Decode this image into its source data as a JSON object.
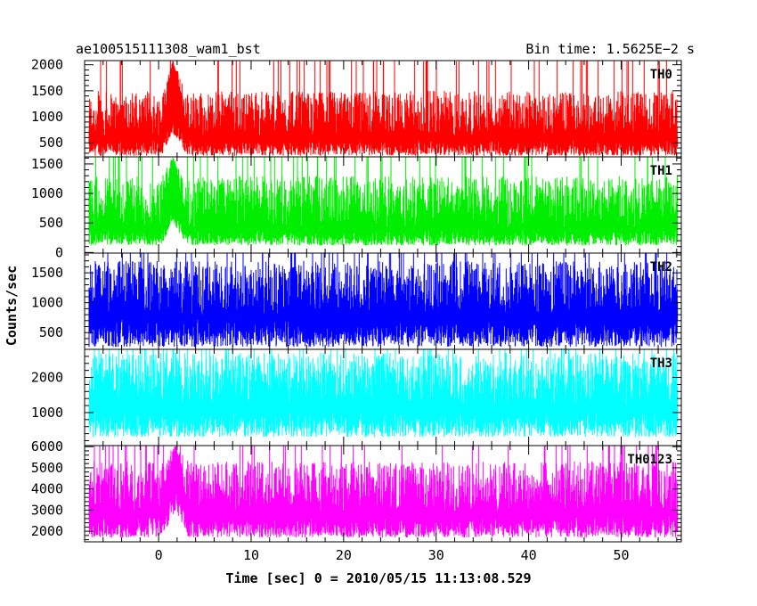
{
  "chart_data": {
    "type": "line",
    "title_left": "ae100515111308_wam1_bst",
    "title_right": "Bin time: 1.5625E−2 s",
    "xlabel": "Time [sec] 0 = 2010/05/15 11:13:08.529",
    "ylabel": "Counts/sec",
    "xlim": [
      -8,
      56.5
    ],
    "xticks": [
      0,
      10,
      20,
      30,
      40,
      50
    ],
    "x_minor_step": 2,
    "x_data_range": [
      -7.5,
      56
    ],
    "bin_time": 0.015625,
    "grid": false,
    "panels": [
      {
        "name": "TH0",
        "color": "#ff0000",
        "ylim": [
          230,
          2080
        ],
        "yticks": [
          500,
          1000,
          1500,
          2000
        ],
        "y_minor_step": 100,
        "mean": 620,
        "low": 250,
        "spike_high": 1500,
        "burst": {
          "start": 0.3,
          "peak": 1.5,
          "end": 3.0,
          "peak_level": 2080,
          "low_lift": 450
        }
      },
      {
        "name": "TH1",
        "color": "#00ee00",
        "ylim": [
          -10,
          1620
        ],
        "yticks": [
          0,
          500,
          1000,
          1500
        ],
        "y_minor_step": 100,
        "mean": 430,
        "low": 120,
        "spike_high": 1300,
        "burst": {
          "start": 0.3,
          "peak": 1.5,
          "end": 3.0,
          "peak_level": 1620,
          "low_lift": 400
        }
      },
      {
        "name": "TH2",
        "color": "#0000ff",
        "ylim": [
          220,
          1830
        ],
        "yticks": [
          500,
          1000,
          1500
        ],
        "y_minor_step": 100,
        "mean": 800,
        "low": 260,
        "spike_high": 1700
      },
      {
        "name": "TH3",
        "color": "#00ffff",
        "ylim": [
          60,
          2800
        ],
        "yticks": [
          1000,
          2000
        ],
        "y_minor_step": 200,
        "mean": 1200,
        "low": 300,
        "spike_high": 2700
      },
      {
        "name": "TH0123",
        "color": "#ff00ff",
        "ylim": [
          1500,
          6050
        ],
        "yticks": [
          2000,
          3000,
          4000,
          5000,
          6000
        ],
        "y_minor_step": 200,
        "mean": 2900,
        "low": 1700,
        "spike_high": 5300,
        "burst": {
          "start": 0.3,
          "peak": 1.8,
          "end": 3.2,
          "peak_level": 6050,
          "low_lift": 1300
        }
      }
    ]
  }
}
